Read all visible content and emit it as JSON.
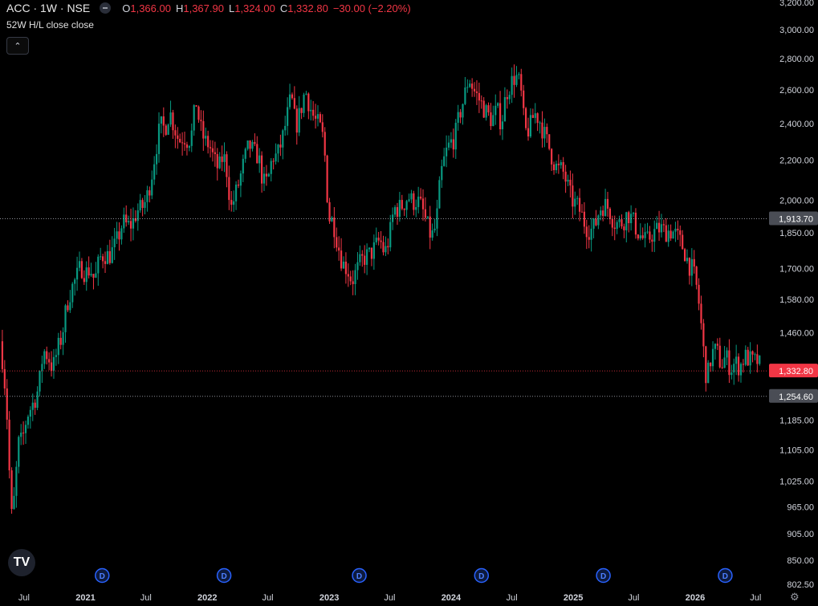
{
  "header": {
    "symbol": "ACC · 1W · NSE",
    "o_label": "O",
    "o_value": "1,366.00",
    "h_label": "H",
    "h_value": "1,367.90",
    "l_label": "L",
    "l_value": "1,324.00",
    "c_label": "C",
    "c_value": "1,332.80",
    "change": "−30.00 (−2.20%)"
  },
  "indicator_label": "52W H/L close close",
  "collapse_icon": "chevron-up-icon",
  "logo_text": "TV",
  "settings_icon": "gear-icon",
  "colors": {
    "up": "#089981",
    "down": "#f23645",
    "bg": "#000000",
    "dividend": "#2962ff"
  },
  "chart_data": {
    "type": "candlestick",
    "interval": "1W",
    "x_start": "2020-04-20",
    "x_end": "2026-08-03",
    "x_labels": [
      {
        "label": "Jul",
        "date": "2020-07-01"
      },
      {
        "label": "2021",
        "date": "2021-01-01"
      },
      {
        "label": "Jul",
        "date": "2021-07-01"
      },
      {
        "label": "2022",
        "date": "2022-01-01"
      },
      {
        "label": "Jul",
        "date": "2022-07-01"
      },
      {
        "label": "2023",
        "date": "2023-01-01"
      },
      {
        "label": "Jul",
        "date": "2023-07-01"
      },
      {
        "label": "2024",
        "date": "2024-01-01"
      },
      {
        "label": "Jul",
        "date": "2024-07-01"
      },
      {
        "label": "2025",
        "date": "2025-01-01"
      },
      {
        "label": "Jul",
        "date": "2025-07-01"
      },
      {
        "label": "2026",
        "date": "2026-01-01"
      },
      {
        "label": "Jul",
        "date": "2026-07-01"
      }
    ],
    "y_scale": "log",
    "y_range": [
      780,
      3210
    ],
    "y_ticks": [
      {
        "label": "3,200.00",
        "value": 3200
      },
      {
        "label": "3,000.00",
        "value": 3000
      },
      {
        "label": "2,800.00",
        "value": 2800
      },
      {
        "label": "2,600.00",
        "value": 2600
      },
      {
        "label": "2,400.00",
        "value": 2400
      },
      {
        "label": "2,200.00",
        "value": 2200
      },
      {
        "label": "2,000.00",
        "value": 2000
      },
      {
        "label": "1,850.00",
        "value": 1850
      },
      {
        "label": "1,700.00",
        "value": 1700
      },
      {
        "label": "1,580.00",
        "value": 1580
      },
      {
        "label": "1,460.00",
        "value": 1460
      },
      {
        "label": "1,185.00",
        "value": 1185
      },
      {
        "label": "1,105.00",
        "value": 1105
      },
      {
        "label": "1,025.00",
        "value": 1025
      },
      {
        "label": "965.00",
        "value": 965
      },
      {
        "label": "905.00",
        "value": 905
      },
      {
        "label": "850.00",
        "value": 850
      },
      {
        "label": "802.50",
        "value": 802.5
      }
    ],
    "price_lines": [
      {
        "label": "1,913.70",
        "value": 1913.7,
        "style": "dotted",
        "color": "#b2b5be",
        "tag_bg": "#4a4d55"
      },
      {
        "label": "1,332.80",
        "value": 1332.8,
        "style": "dotted",
        "color": "#f23645",
        "tag_bg": "#f23645"
      },
      {
        "label": "1,254.60",
        "value": 1254.6,
        "style": "dotted",
        "color": "#b2b5be",
        "tag_bg": "#4a4d55"
      }
    ],
    "dividend_marker_dates": [
      "2021-02-20",
      "2022-02-20",
      "2023-04-01",
      "2024-04-01",
      "2025-04-01",
      "2026-04-01"
    ],
    "dividend_label": "D",
    "close_path": [
      [
        "2020-04-20",
        1430
      ],
      [
        "2020-05-01",
        1340
      ],
      [
        "2020-05-15",
        1140
      ],
      [
        "2020-05-22",
        930
      ],
      [
        "2020-06-05",
        1000
      ],
      [
        "2020-06-12",
        1120
      ],
      [
        "2020-06-26",
        1130
      ],
      [
        "2020-07-10",
        1200
      ],
      [
        "2020-07-31",
        1240
      ],
      [
        "2020-08-14",
        1280
      ],
      [
        "2020-08-28",
        1400
      ],
      [
        "2020-09-11",
        1380
      ],
      [
        "2020-09-25",
        1340
      ],
      [
        "2020-10-09",
        1400
      ],
      [
        "2020-10-23",
        1450
      ],
      [
        "2020-11-06",
        1560
      ],
      [
        "2020-11-20",
        1620
      ],
      [
        "2020-12-04",
        1660
      ],
      [
        "2020-12-18",
        1710
      ],
      [
        "2021-01-01",
        1680
      ],
      [
        "2021-01-15",
        1700
      ],
      [
        "2021-01-29",
        1650
      ],
      [
        "2021-02-12",
        1740
      ],
      [
        "2021-02-26",
        1760
      ],
      [
        "2021-03-12",
        1750
      ],
      [
        "2021-03-26",
        1780
      ],
      [
        "2021-04-09",
        1830
      ],
      [
        "2021-04-23",
        1900
      ],
      [
        "2021-05-07",
        1880
      ],
      [
        "2021-05-21",
        1890
      ],
      [
        "2021-06-04",
        1950
      ],
      [
        "2021-06-18",
        1960
      ],
      [
        "2021-07-02",
        2000
      ],
      [
        "2021-07-16",
        2100
      ],
      [
        "2021-07-30",
        2250
      ],
      [
        "2021-08-13",
        2390
      ],
      [
        "2021-08-27",
        2370
      ],
      [
        "2021-09-10",
        2470
      ],
      [
        "2021-09-24",
        2380
      ],
      [
        "2021-10-08",
        2300
      ],
      [
        "2021-10-22",
        2330
      ],
      [
        "2021-11-05",
        2300
      ],
      [
        "2021-11-19",
        2360
      ],
      [
        "2021-11-26",
        2560
      ],
      [
        "2021-12-10",
        2380
      ],
      [
        "2021-12-24",
        2300
      ],
      [
        "2022-01-07",
        2280
      ],
      [
        "2022-01-21",
        2200
      ],
      [
        "2022-02-04",
        2150
      ],
      [
        "2022-02-18",
        2230
      ],
      [
        "2022-03-04",
        2110
      ],
      [
        "2022-03-11",
        1950
      ],
      [
        "2022-03-25",
        2020
      ],
      [
        "2022-04-08",
        2100
      ],
      [
        "2022-04-22",
        2200
      ],
      [
        "2022-05-06",
        2280
      ],
      [
        "2022-05-20",
        2240
      ],
      [
        "2022-06-03",
        2220
      ],
      [
        "2022-06-17",
        2080
      ],
      [
        "2022-07-01",
        2090
      ],
      [
        "2022-07-15",
        2220
      ],
      [
        "2022-07-29",
        2220
      ],
      [
        "2022-08-12",
        2300
      ],
      [
        "2022-08-26",
        2420
      ],
      [
        "2022-09-09",
        2560
      ],
      [
        "2022-09-23",
        2380
      ],
      [
        "2022-10-07",
        2470
      ],
      [
        "2022-10-21",
        2600
      ],
      [
        "2022-11-04",
        2500
      ],
      [
        "2022-11-18",
        2420
      ],
      [
        "2022-12-02",
        2390
      ],
      [
        "2022-12-16",
        2300
      ],
      [
        "2022-12-30",
        1920
      ],
      [
        "2023-01-13",
        1900
      ],
      [
        "2023-01-27",
        1800
      ],
      [
        "2023-02-10",
        1720
      ],
      [
        "2023-02-24",
        1700
      ],
      [
        "2023-03-10",
        1650
      ],
      [
        "2023-03-24",
        1690
      ],
      [
        "2023-04-07",
        1730
      ],
      [
        "2023-04-21",
        1750
      ],
      [
        "2023-05-05",
        1760
      ],
      [
        "2023-05-19",
        1790
      ],
      [
        "2023-06-02",
        1820
      ],
      [
        "2023-06-16",
        1760
      ],
      [
        "2023-06-30",
        1830
      ],
      [
        "2023-07-14",
        1960
      ],
      [
        "2023-07-28",
        1960
      ],
      [
        "2023-08-11",
        1980
      ],
      [
        "2023-08-25",
        2020
      ],
      [
        "2023-09-08",
        1990
      ],
      [
        "2023-09-22",
        2000
      ],
      [
        "2023-10-06",
        1960
      ],
      [
        "2023-10-20",
        1890
      ],
      [
        "2023-11-03",
        1830
      ],
      [
        "2023-11-17",
        1880
      ],
      [
        "2023-12-01",
        2120
      ],
      [
        "2023-12-15",
        2230
      ],
      [
        "2023-12-29",
        2290
      ],
      [
        "2024-01-12",
        2320
      ],
      [
        "2024-01-26",
        2450
      ],
      [
        "2024-02-09",
        2550
      ],
      [
        "2024-02-23",
        2680
      ],
      [
        "2024-03-08",
        2600
      ],
      [
        "2024-03-22",
        2550
      ],
      [
        "2024-04-05",
        2500
      ],
      [
        "2024-04-19",
        2450
      ],
      [
        "2024-05-03",
        2420
      ],
      [
        "2024-05-17",
        2480
      ],
      [
        "2024-05-31",
        2400
      ],
      [
        "2024-06-14",
        2580
      ],
      [
        "2024-06-28",
        2640
      ],
      [
        "2024-07-12",
        2690
      ],
      [
        "2024-07-26",
        2630
      ],
      [
        "2024-08-09",
        2350
      ],
      [
        "2024-08-23",
        2370
      ],
      [
        "2024-09-06",
        2460
      ],
      [
        "2024-09-20",
        2430
      ],
      [
        "2024-10-04",
        2350
      ],
      [
        "2024-10-18",
        2280
      ],
      [
        "2024-11-01",
        2200
      ],
      [
        "2024-11-15",
        2150
      ],
      [
        "2024-11-29",
        2150
      ],
      [
        "2024-12-13",
        2080
      ],
      [
        "2024-12-27",
        2000
      ],
      [
        "2025-01-10",
        1980
      ],
      [
        "2025-01-24",
        1940
      ],
      [
        "2025-02-07",
        1880
      ],
      [
        "2025-02-21",
        1860
      ],
      [
        "2025-03-07",
        1880
      ],
      [
        "2025-03-21",
        1960
      ],
      [
        "2025-04-04",
        1980
      ],
      [
        "2025-04-18",
        1960
      ],
      [
        "2025-05-02",
        1900
      ],
      [
        "2025-05-16",
        1890
      ],
      [
        "2025-05-30",
        1900
      ],
      [
        "2025-06-13",
        1940
      ],
      [
        "2025-06-27",
        1910
      ],
      [
        "2025-07-11",
        1860
      ],
      [
        "2025-07-25",
        1830
      ],
      [
        "2025-08-08",
        1810
      ],
      [
        "2025-08-22",
        1840
      ],
      [
        "2025-09-05",
        1860
      ],
      [
        "2025-09-19",
        1870
      ],
      [
        "2025-10-03",
        1855
      ],
      [
        "2025-10-17",
        1860
      ],
      [
        "2025-10-31",
        1850
      ],
      [
        "2025-11-14",
        1820
      ],
      [
        "2025-11-28",
        1780
      ],
      [
        "2025-12-12",
        1720
      ],
      [
        "2025-12-26",
        1690
      ],
      [
        "2026-01-09",
        1600
      ],
      [
        "2026-01-23",
        1440
      ],
      [
        "2026-01-30",
        1340
      ],
      [
        "2026-02-06",
        1310
      ],
      [
        "2026-02-20",
        1390
      ],
      [
        "2026-03-06",
        1400
      ],
      [
        "2026-03-20",
        1350
      ],
      [
        "2026-04-03",
        1380
      ],
      [
        "2026-04-17",
        1340
      ],
      [
        "2026-05-01",
        1360
      ],
      [
        "2026-05-15",
        1345
      ],
      [
        "2026-05-29",
        1380
      ],
      [
        "2026-06-12",
        1370
      ],
      [
        "2026-06-26",
        1360
      ],
      [
        "2026-07-10",
        1366
      ],
      [
        "2026-07-17",
        1332.8
      ]
    ]
  }
}
